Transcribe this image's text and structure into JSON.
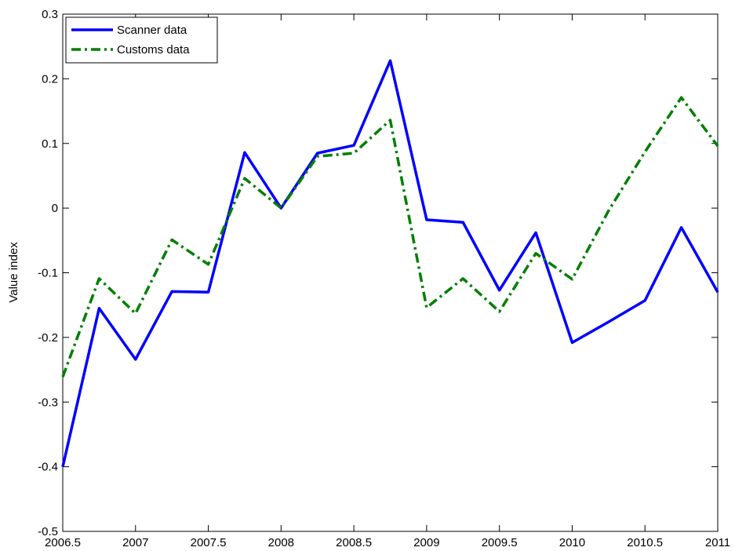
{
  "chart_data": {
    "type": "line",
    "ylabel": "Value index",
    "x": [
      2006.5,
      2006.75,
      2007,
      2007.25,
      2007.5,
      2007.75,
      2008,
      2008.25,
      2008.5,
      2008.75,
      2009,
      2009.25,
      2009.5,
      2009.75,
      2010,
      2010.25,
      2010.5,
      2010.75,
      2011
    ],
    "series": [
      {
        "name": "Scanner data",
        "color": "#0000ff",
        "style": "solid",
        "values": [
          -0.4,
          -0.155,
          -0.234,
          -0.129,
          -0.13,
          0.086,
          0,
          0.085,
          0.097,
          0.228,
          -0.018,
          -0.022,
          -0.127,
          -0.038,
          -0.208,
          -0.176,
          -0.143,
          -0.03,
          -0.13
        ]
      },
      {
        "name": "Customs data",
        "color": "#007f00",
        "style": "dashdot",
        "values": [
          -0.261,
          -0.109,
          -0.163,
          -0.049,
          -0.087,
          0.046,
          0,
          0.08,
          0.085,
          0.136,
          -0.154,
          -0.109,
          -0.16,
          -0.07,
          -0.11,
          -0.004,
          0.087,
          0.171,
          0.096
        ]
      }
    ],
    "xlim": [
      2006.5,
      2011
    ],
    "xticks": [
      2006.5,
      2007,
      2007.5,
      2008,
      2008.5,
      2009,
      2009.5,
      2010,
      2010.5,
      2011
    ],
    "ylim": [
      -0.5,
      0.3
    ],
    "yticks": [
      -0.5,
      -0.4,
      -0.3,
      -0.2,
      -0.1,
      0,
      0.1,
      0.2,
      0.3
    ],
    "legend": "upper-left"
  }
}
